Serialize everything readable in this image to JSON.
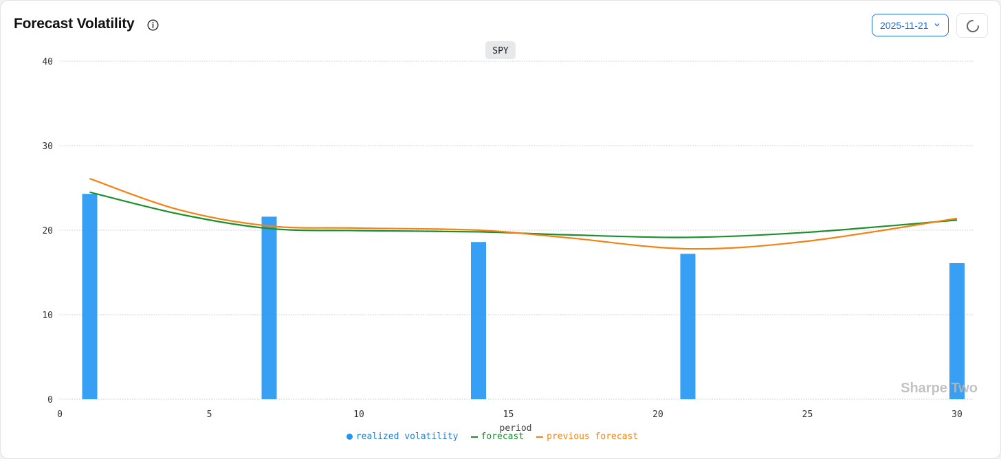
{
  "header": {
    "title": "Forecast Volatility",
    "date_value": "2025-11-21"
  },
  "watermark": "Sharpe Two",
  "colors": {
    "realized": "#2196f3",
    "forecast": "#1a8f2a",
    "previous": "#f48213"
  },
  "icons": {
    "info": "info-icon",
    "chevron": "chevron-down-icon",
    "refresh": "refresh-spinner-icon"
  },
  "chart_data": {
    "type": "bar",
    "title": "SPY",
    "xlabel": "period",
    "ylabel": "",
    "xlim": [
      0,
      30
    ],
    "ylim": [
      0,
      40
    ],
    "xticks": [
      0,
      5,
      10,
      15,
      20,
      25,
      30
    ],
    "yticks": [
      0,
      10,
      20,
      30,
      40
    ],
    "grid": true,
    "legend_position": "bottom-center",
    "bar_series": {
      "name": "realized volatility",
      "x": [
        1,
        7,
        14,
        21,
        30
      ],
      "values": [
        24.3,
        21.6,
        18.6,
        17.2,
        16.1
      ]
    },
    "line_series": [
      {
        "name": "forecast",
        "x": [
          1,
          4,
          7,
          10,
          14,
          17,
          21,
          25,
          30
        ],
        "values": [
          24.5,
          21.9,
          20.2,
          19.95,
          19.8,
          19.45,
          19.15,
          19.75,
          21.2
        ]
      },
      {
        "name": "previous forecast",
        "x": [
          1,
          4,
          7,
          10,
          14,
          17,
          21,
          25,
          30
        ],
        "values": [
          26.1,
          22.4,
          20.5,
          20.25,
          20.0,
          19.1,
          17.8,
          18.7,
          21.4
        ]
      }
    ]
  }
}
